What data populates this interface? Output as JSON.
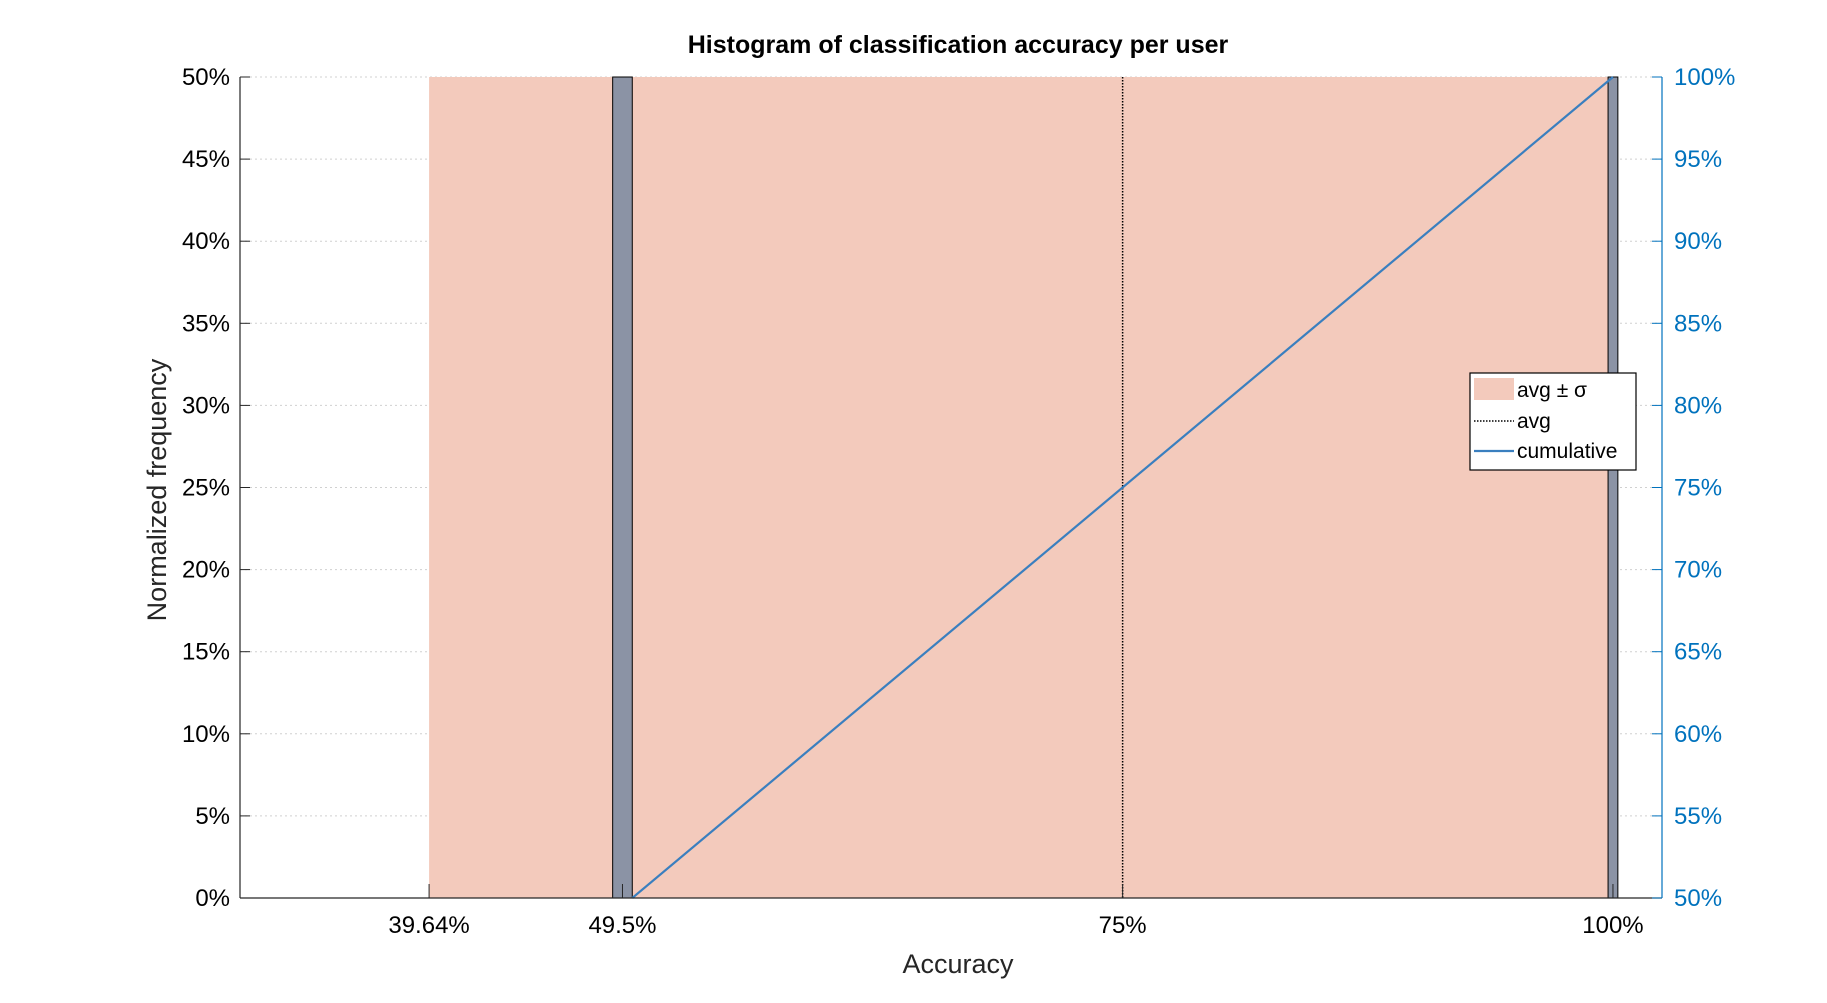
{
  "chart_data": {
    "type": "bar",
    "title": "Histogram of classification accuracy per user",
    "xlabel": "Accuracy",
    "ylabel": "Normalized frequency",
    "x_tick_labels": [
      "39.64%",
      "49.5%",
      "75%",
      "100%"
    ],
    "x_ticks": [
      39.64,
      49.5,
      75,
      100
    ],
    "xlim": [
      30,
      102.5
    ],
    "ylim": [
      0,
      50
    ],
    "y_ticks": [
      0,
      5,
      10,
      15,
      20,
      25,
      30,
      35,
      40,
      45,
      50
    ],
    "y_tick_labels": [
      "0%",
      "5%",
      "10%",
      "15%",
      "20%",
      "25%",
      "30%",
      "35%",
      "40%",
      "45%",
      "50%"
    ],
    "y2lim": [
      50,
      100
    ],
    "y2_ticks": [
      50,
      55,
      60,
      65,
      70,
      75,
      80,
      85,
      90,
      95,
      100
    ],
    "y2_tick_labels": [
      "50%",
      "55%",
      "60%",
      "65%",
      "70%",
      "75%",
      "80%",
      "85%",
      "90%",
      "95%",
      "100%"
    ],
    "grid": true,
    "legend_position": "right",
    "bars": [
      {
        "x": 49.5,
        "width": 1.0,
        "value": 50
      },
      {
        "x": 100,
        "width": 0.5,
        "value": 50
      }
    ],
    "avg": 75,
    "std_band": [
      39.64,
      100
    ],
    "cumulative": {
      "x": [
        50,
        100
      ],
      "y": [
        50,
        100
      ]
    },
    "legend": [
      "avg ± σ",
      "avg",
      "cumulative"
    ],
    "colors": {
      "bar_fill": "#8b93a5",
      "bar_edge": "#000000",
      "band": "#f3cabc",
      "avg_line": "#000000",
      "cumulative": "#3a7fbf",
      "right_axis": "#0072BD"
    }
  }
}
